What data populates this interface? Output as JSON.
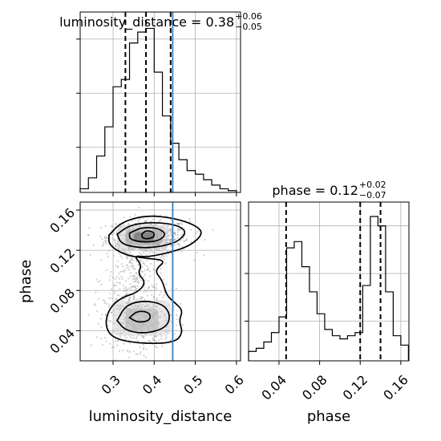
{
  "chart_data": [
    {
      "type": "histogram",
      "panel": "top-left",
      "title": {
        "name": "luminosity_distance",
        "median": "0.38",
        "plus": "+0.06",
        "minus": "−0.05"
      },
      "bin_edges": [
        0.22,
        0.24,
        0.26,
        0.28,
        0.3,
        0.32,
        0.34,
        0.36,
        0.38,
        0.4,
        0.42,
        0.44,
        0.46,
        0.48,
        0.5,
        0.52,
        0.54,
        0.56,
        0.58,
        0.6
      ],
      "counts": [
        2,
        8,
        20,
        36,
        58,
        62,
        82,
        88,
        90,
        66,
        42,
        27,
        18,
        12,
        10,
        7,
        4,
        2,
        1
      ],
      "quantiles": [
        0.33,
        0.38,
        0.44
      ],
      "truth": 0.445,
      "xlim": [
        0.22,
        0.61
      ],
      "xticks": [
        0.3,
        0.4,
        0.5,
        0.6
      ],
      "grid": true
    },
    {
      "type": "histogram",
      "panel": "bottom-right",
      "title": {
        "name": "phase",
        "median": "0.12",
        "plus": "+0.02",
        "minus": "−0.07"
      },
      "bin_edges": [
        0.01,
        0.0175,
        0.025,
        0.0325,
        0.04,
        0.0475,
        0.055,
        0.0625,
        0.07,
        0.0775,
        0.085,
        0.0925,
        0.1,
        0.1075,
        0.115,
        0.1225,
        0.13,
        0.1375,
        0.145,
        0.1525,
        0.16,
        0.1675
      ],
      "counts": [
        3,
        4,
        6,
        9,
        14,
        36,
        38,
        30,
        22,
        15,
        10,
        8,
        7,
        8,
        9,
        24,
        46,
        43,
        22,
        8,
        5
      ],
      "quantiles": [
        0.047,
        0.12,
        0.14
      ],
      "xlim": [
        0.01,
        0.168
      ],
      "xticks": [
        0.04,
        0.08,
        0.12,
        0.16
      ],
      "xticklabels": [
        "0.04",
        "0.08",
        "0.12",
        "0.16"
      ],
      "xlabel": "phase",
      "grid": true
    },
    {
      "type": "scatter-density",
      "panel": "bottom-left",
      "xlabel": "luminosity_distance",
      "ylabel": "phase",
      "xlim": [
        0.22,
        0.61
      ],
      "ylim": [
        0.01,
        0.168
      ],
      "xticks": [
        0.3,
        0.4,
        0.5,
        0.6
      ],
      "xticklabels": [
        "0.3",
        "0.4",
        "0.5",
        "0.6"
      ],
      "yticks": [
        0.04,
        0.08,
        0.12,
        0.16
      ],
      "yticklabels": [
        "0.04",
        "0.08",
        "0.12",
        "0.16"
      ],
      "truth_x": 0.445,
      "clusters": [
        {
          "cx": 0.385,
          "cy": 0.133,
          "sx": 0.05,
          "sy": 0.009,
          "n": 700
        },
        {
          "cx": 0.36,
          "cy": 0.05,
          "sx": 0.04,
          "sy": 0.014,
          "n": 550
        },
        {
          "cx": 0.35,
          "cy": 0.09,
          "sx": 0.035,
          "sy": 0.02,
          "n": 250
        }
      ],
      "density_cells": [
        {
          "x": [
            0.31,
            0.43
          ],
          "y": [
            0.12,
            0.145
          ],
          "level": 0.25
        },
        {
          "x": [
            0.33,
            0.42
          ],
          "y": [
            0.125,
            0.14
          ],
          "level": 0.5
        },
        {
          "x": [
            0.35,
            0.4
          ],
          "y": [
            0.128,
            0.138
          ],
          "level": 0.8
        },
        {
          "x": [
            0.3,
            0.44
          ],
          "y": [
            0.035,
            0.07
          ],
          "level": 0.2
        },
        {
          "x": [
            0.33,
            0.41
          ],
          "y": [
            0.04,
            0.062
          ],
          "level": 0.4
        }
      ],
      "contours": [
        [
          [
            0.29,
            0.135
          ],
          [
            0.32,
            0.148
          ],
          [
            0.38,
            0.155
          ],
          [
            0.45,
            0.152
          ],
          [
            0.5,
            0.145
          ],
          [
            0.52,
            0.137
          ],
          [
            0.49,
            0.125
          ],
          [
            0.44,
            0.118
          ],
          [
            0.38,
            0.113
          ],
          [
            0.35,
            0.115
          ],
          [
            0.37,
            0.105
          ],
          [
            0.36,
            0.097
          ],
          [
            0.38,
            0.088
          ],
          [
            0.36,
            0.078
          ],
          [
            0.32,
            0.073
          ],
          [
            0.29,
            0.062
          ],
          [
            0.28,
            0.045
          ],
          [
            0.3,
            0.032
          ],
          [
            0.37,
            0.027
          ],
          [
            0.45,
            0.028
          ],
          [
            0.47,
            0.038
          ],
          [
            0.46,
            0.05
          ],
          [
            0.47,
            0.06
          ],
          [
            0.45,
            0.068
          ],
          [
            0.43,
            0.075
          ],
          [
            0.42,
            0.09
          ],
          [
            0.4,
            0.1
          ],
          [
            0.43,
            0.11
          ],
          [
            0.38,
            0.112
          ],
          [
            0.33,
            0.115
          ],
          [
            0.29,
            0.125
          ],
          [
            0.29,
            0.135
          ]
        ],
        [
          [
            0.31,
            0.136
          ],
          [
            0.34,
            0.145
          ],
          [
            0.39,
            0.148
          ],
          [
            0.45,
            0.146
          ],
          [
            0.48,
            0.139
          ],
          [
            0.46,
            0.129
          ],
          [
            0.42,
            0.124
          ],
          [
            0.37,
            0.122
          ],
          [
            0.32,
            0.126
          ],
          [
            0.31,
            0.136
          ]
        ],
        [
          [
            0.34,
            0.137
          ],
          [
            0.37,
            0.143
          ],
          [
            0.41,
            0.142
          ],
          [
            0.43,
            0.136
          ],
          [
            0.41,
            0.129
          ],
          [
            0.37,
            0.128
          ],
          [
            0.34,
            0.131
          ],
          [
            0.34,
            0.137
          ]
        ],
        [
          [
            0.37,
            0.136
          ],
          [
            0.38,
            0.14
          ],
          [
            0.4,
            0.138
          ],
          [
            0.4,
            0.133
          ],
          [
            0.38,
            0.131
          ],
          [
            0.37,
            0.133
          ],
          [
            0.37,
            0.136
          ]
        ],
        [
          [
            0.31,
            0.05
          ],
          [
            0.33,
            0.065
          ],
          [
            0.37,
            0.07
          ],
          [
            0.42,
            0.067
          ],
          [
            0.44,
            0.056
          ],
          [
            0.43,
            0.043
          ],
          [
            0.38,
            0.037
          ],
          [
            0.33,
            0.04
          ],
          [
            0.31,
            0.05
          ]
        ],
        [
          [
            0.34,
            0.053
          ],
          [
            0.36,
            0.06
          ],
          [
            0.39,
            0.058
          ],
          [
            0.39,
            0.05
          ],
          [
            0.36,
            0.048
          ],
          [
            0.34,
            0.053
          ]
        ]
      ]
    }
  ]
}
